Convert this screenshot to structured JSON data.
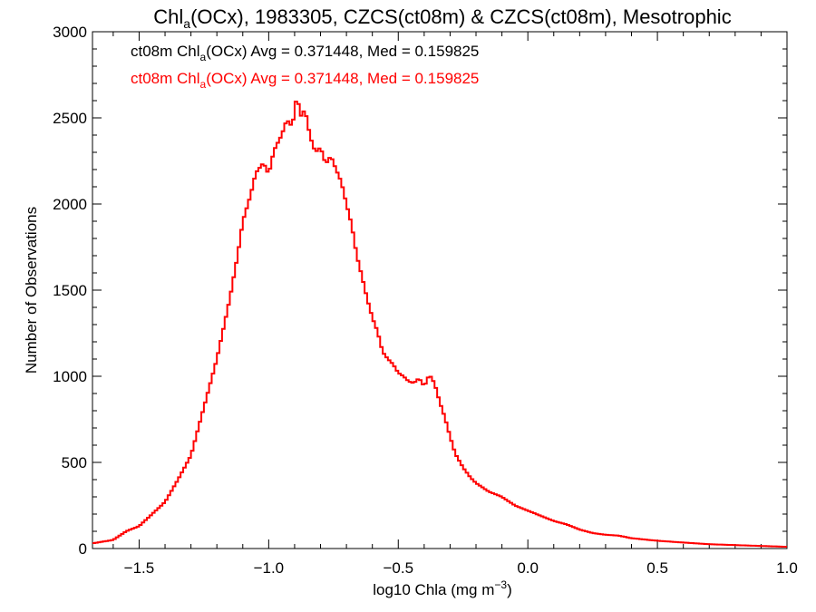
{
  "chart_data": {
    "type": "histogram",
    "title_parts": [
      "Chl",
      "a",
      "(OCx), 1983305, CZCS(ct08m) & CZCS(ct08m), Mesotrophic"
    ],
    "xlabel_parts": [
      "log10 Chla (mg m",
      "−3",
      ")"
    ],
    "ylabel": "Number of Observations",
    "xlim": [
      -1.68,
      1.0
    ],
    "ylim": [
      0,
      3000
    ],
    "xticks": [
      -1.5,
      -1.0,
      -0.5,
      0.0,
      0.5,
      1.0
    ],
    "xtick_labels": [
      "−1.5",
      "−1.0",
      "−0.5",
      "0.0",
      "0.5",
      "1.0"
    ],
    "yticks": [
      0,
      500,
      1000,
      1500,
      2000,
      2500,
      3000
    ],
    "ytick_labels": [
      "0",
      "500",
      "1000",
      "1500",
      "2000",
      "2500",
      "3000"
    ],
    "legend": [
      {
        "color": "#000000",
        "parts": [
          "ct08m Chl",
          "a",
          "(OCx) Avg = 0.371448, Med = 0.159825"
        ]
      },
      {
        "color": "#ff0000",
        "parts": [
          "ct08m Chl",
          "a",
          "(OCx) Avg = 0.371448, Med = 0.159825"
        ]
      }
    ],
    "series": [
      {
        "color": "#ff0000",
        "points": [
          [
            -1.68,
            30
          ],
          [
            -1.6,
            50
          ],
          [
            -1.55,
            100
          ],
          [
            -1.5,
            130
          ],
          [
            -1.45,
            200
          ],
          [
            -1.4,
            270
          ],
          [
            -1.35,
            400
          ],
          [
            -1.3,
            540
          ],
          [
            -1.25,
            820
          ],
          [
            -1.2,
            1100
          ],
          [
            -1.15,
            1450
          ],
          [
            -1.12,
            1700
          ],
          [
            -1.1,
            1900
          ],
          [
            -1.07,
            2050
          ],
          [
            -1.05,
            2180
          ],
          [
            -1.02,
            2240
          ],
          [
            -1.0,
            2170
          ],
          [
            -0.98,
            2310
          ],
          [
            -0.95,
            2400
          ],
          [
            -0.93,
            2490
          ],
          [
            -0.91,
            2450
          ],
          [
            -0.9,
            2530
          ],
          [
            -0.89,
            2660
          ],
          [
            -0.88,
            2500
          ],
          [
            -0.86,
            2550
          ],
          [
            -0.84,
            2390
          ],
          [
            -0.82,
            2300
          ],
          [
            -0.8,
            2330
          ],
          [
            -0.78,
            2230
          ],
          [
            -0.76,
            2280
          ],
          [
            -0.74,
            2200
          ],
          [
            -0.72,
            2130
          ],
          [
            -0.7,
            2000
          ],
          [
            -0.68,
            1880
          ],
          [
            -0.66,
            1700
          ],
          [
            -0.64,
            1580
          ],
          [
            -0.62,
            1450
          ],
          [
            -0.6,
            1340
          ],
          [
            -0.58,
            1260
          ],
          [
            -0.56,
            1140
          ],
          [
            -0.54,
            1100
          ],
          [
            -0.52,
            1070
          ],
          [
            -0.5,
            1020
          ],
          [
            -0.48,
            1000
          ],
          [
            -0.46,
            970
          ],
          [
            -0.44,
            960
          ],
          [
            -0.42,
            990
          ],
          [
            -0.4,
            940
          ],
          [
            -0.38,
            1010
          ],
          [
            -0.36,
            960
          ],
          [
            -0.34,
            850
          ],
          [
            -0.32,
            760
          ],
          [
            -0.3,
            650
          ],
          [
            -0.28,
            550
          ],
          [
            -0.25,
            470
          ],
          [
            -0.22,
            410
          ],
          [
            -0.2,
            380
          ],
          [
            -0.15,
            330
          ],
          [
            -0.1,
            300
          ],
          [
            -0.05,
            250
          ],
          [
            0.0,
            220
          ],
          [
            0.05,
            190
          ],
          [
            0.1,
            160
          ],
          [
            0.15,
            140
          ],
          [
            0.2,
            110
          ],
          [
            0.25,
            90
          ],
          [
            0.3,
            80
          ],
          [
            0.35,
            75
          ],
          [
            0.4,
            60
          ],
          [
            0.5,
            45
          ],
          [
            0.6,
            35
          ],
          [
            0.7,
            25
          ],
          [
            0.8,
            20
          ],
          [
            0.9,
            15
          ],
          [
            1.0,
            10
          ]
        ]
      }
    ]
  }
}
